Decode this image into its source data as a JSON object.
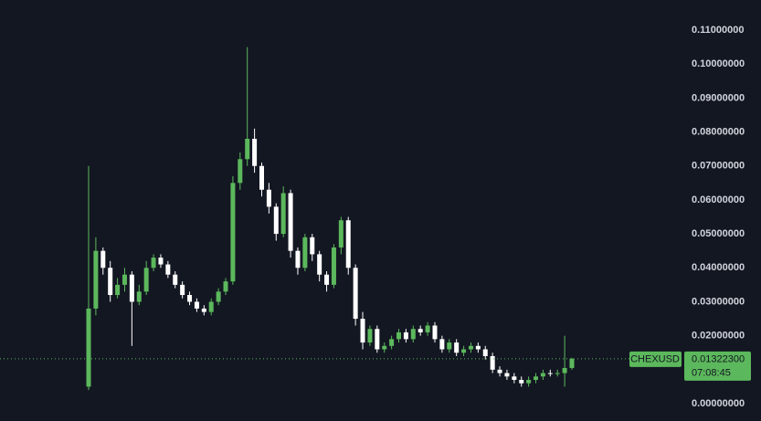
{
  "chart_data": {
    "type": "candlestick",
    "symbol": "CHEXUSD",
    "countdown": "07:08:45",
    "last_price": {
      "value": 0.013223,
      "label": "0.01322300"
    },
    "up_color": "#5cb85c",
    "down_color": "#ffffff",
    "ylim": [
      0,
      0.11
    ],
    "yticks": [
      {
        "value": 0,
        "label": "0.00000000"
      },
      {
        "value": 0.01,
        "label": "0.01000000"
      },
      {
        "value": 0.02,
        "label": "0.02000000"
      },
      {
        "value": 0.03,
        "label": "0.03000000"
      },
      {
        "value": 0.04,
        "label": "0.04000000"
      },
      {
        "value": 0.05,
        "label": "0.05000000"
      },
      {
        "value": 0.06,
        "label": "0.06000000"
      },
      {
        "value": 0.07,
        "label": "0.07000000"
      },
      {
        "value": 0.08,
        "label": "0.08000000"
      },
      {
        "value": 0.09,
        "label": "0.09000000"
      },
      {
        "value": 0.1,
        "label": "0.10000000"
      },
      {
        "value": 0.11,
        "label": "0.11000000"
      }
    ],
    "open": [
      0.005,
      0.028,
      0.045,
      0.04,
      0.032,
      0.035,
      0.038,
      0.03,
      0.033,
      0.04,
      0.043,
      0.041,
      0.038,
      0.035,
      0.032,
      0.03,
      0.028,
      0.027,
      0.03,
      0.033,
      0.036,
      0.065,
      0.072,
      0.078,
      0.07,
      0.063,
      0.058,
      0.05,
      0.062,
      0.045,
      0.04,
      0.049,
      0.044,
      0.038,
      0.035,
      0.046,
      0.054,
      0.04,
      0.025,
      0.018,
      0.022,
      0.016,
      0.017,
      0.019,
      0.021,
      0.019,
      0.022,
      0.021,
      0.023,
      0.019,
      0.016,
      0.018,
      0.015,
      0.016,
      0.017,
      0.016,
      0.014,
      0.01,
      0.009,
      0.008,
      0.007,
      0.006,
      0.007,
      0.008,
      0.009,
      0.0088,
      0.009,
      0.0105
    ],
    "high": [
      0.07,
      0.049,
      0.046,
      0.042,
      0.037,
      0.04,
      0.039,
      0.035,
      0.042,
      0.044,
      0.044,
      0.042,
      0.039,
      0.036,
      0.033,
      0.031,
      0.029,
      0.031,
      0.034,
      0.037,
      0.067,
      0.074,
      0.105,
      0.081,
      0.071,
      0.065,
      0.059,
      0.064,
      0.063,
      0.046,
      0.05,
      0.05,
      0.045,
      0.039,
      0.047,
      0.055,
      0.055,
      0.041,
      0.027,
      0.023,
      0.023,
      0.018,
      0.02,
      0.022,
      0.022,
      0.023,
      0.023,
      0.024,
      0.024,
      0.02,
      0.019,
      0.019,
      0.017,
      0.018,
      0.018,
      0.017,
      0.015,
      0.011,
      0.01,
      0.009,
      0.008,
      0.008,
      0.009,
      0.01,
      0.01,
      0.01,
      0.02,
      0.0135
    ],
    "low": [
      0.004,
      0.026,
      0.038,
      0.03,
      0.031,
      0.033,
      0.017,
      0.029,
      0.032,
      0.039,
      0.04,
      0.037,
      0.034,
      0.031,
      0.029,
      0.027,
      0.026,
      0.026,
      0.029,
      0.032,
      0.035,
      0.063,
      0.07,
      0.068,
      0.061,
      0.056,
      0.048,
      0.049,
      0.043,
      0.038,
      0.039,
      0.042,
      0.036,
      0.033,
      0.034,
      0.044,
      0.038,
      0.023,
      0.016,
      0.017,
      0.015,
      0.015,
      0.016,
      0.018,
      0.018,
      0.018,
      0.02,
      0.02,
      0.018,
      0.015,
      0.015,
      0.014,
      0.014,
      0.015,
      0.015,
      0.013,
      0.009,
      0.008,
      0.007,
      0.006,
      0.005,
      0.005,
      0.006,
      0.007,
      0.008,
      0.008,
      0.005,
      0.01
    ],
    "close": [
      0.028,
      0.045,
      0.04,
      0.032,
      0.035,
      0.038,
      0.03,
      0.033,
      0.04,
      0.043,
      0.041,
      0.038,
      0.035,
      0.032,
      0.03,
      0.028,
      0.027,
      0.03,
      0.033,
      0.036,
      0.065,
      0.072,
      0.078,
      0.07,
      0.063,
      0.058,
      0.05,
      0.062,
      0.045,
      0.04,
      0.049,
      0.044,
      0.038,
      0.035,
      0.046,
      0.054,
      0.04,
      0.025,
      0.018,
      0.022,
      0.016,
      0.017,
      0.019,
      0.021,
      0.019,
      0.022,
      0.021,
      0.023,
      0.019,
      0.016,
      0.018,
      0.015,
      0.016,
      0.017,
      0.016,
      0.014,
      0.01,
      0.009,
      0.008,
      0.007,
      0.006,
      0.007,
      0.008,
      0.009,
      0.0088,
      0.009,
      0.0105,
      0.013223
    ]
  }
}
